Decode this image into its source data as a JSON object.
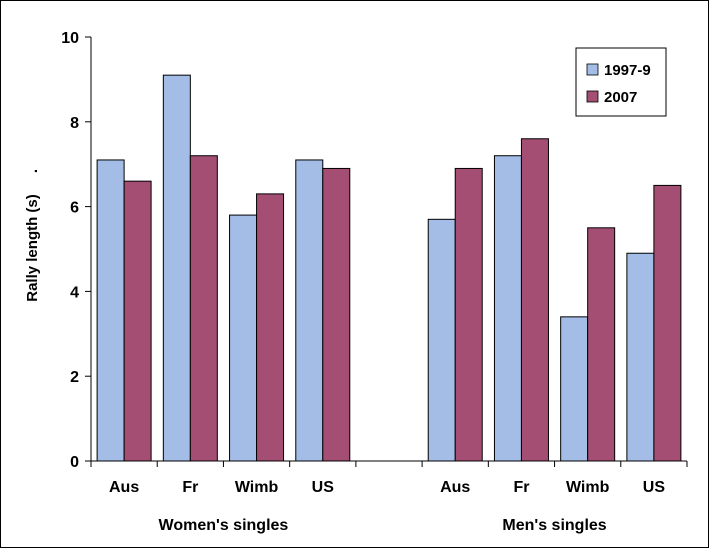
{
  "chart_data": {
    "type": "bar",
    "ylabel": "Rally length (s)",
    "ylabel_suffix": ".",
    "ylim": [
      0,
      10
    ],
    "yticks": [
      0,
      2,
      4,
      6,
      8,
      10
    ],
    "grid": false,
    "legend_position": "top-right",
    "categories": [
      "Aus",
      "Fr",
      "Wimb",
      "US",
      "",
      "Aus",
      "Fr",
      "Wimb",
      "US"
    ],
    "groups": [
      {
        "label": "Women's singles",
        "categories": [
          "Aus",
          "Fr",
          "Wimb",
          "US"
        ]
      },
      {
        "label": "Men's singles",
        "categories": [
          "Aus",
          "Fr",
          "Wimb",
          "US"
        ]
      }
    ],
    "series": [
      {
        "name": "1997-9",
        "color": "#a3bde6",
        "values": [
          7.1,
          9.1,
          5.8,
          7.1,
          null,
          5.7,
          7.2,
          3.4,
          4.9
        ]
      },
      {
        "name": "2007",
        "color": "#a44e73",
        "values": [
          6.6,
          7.2,
          6.3,
          6.9,
          null,
          6.9,
          7.6,
          5.5,
          6.5
        ]
      }
    ]
  }
}
